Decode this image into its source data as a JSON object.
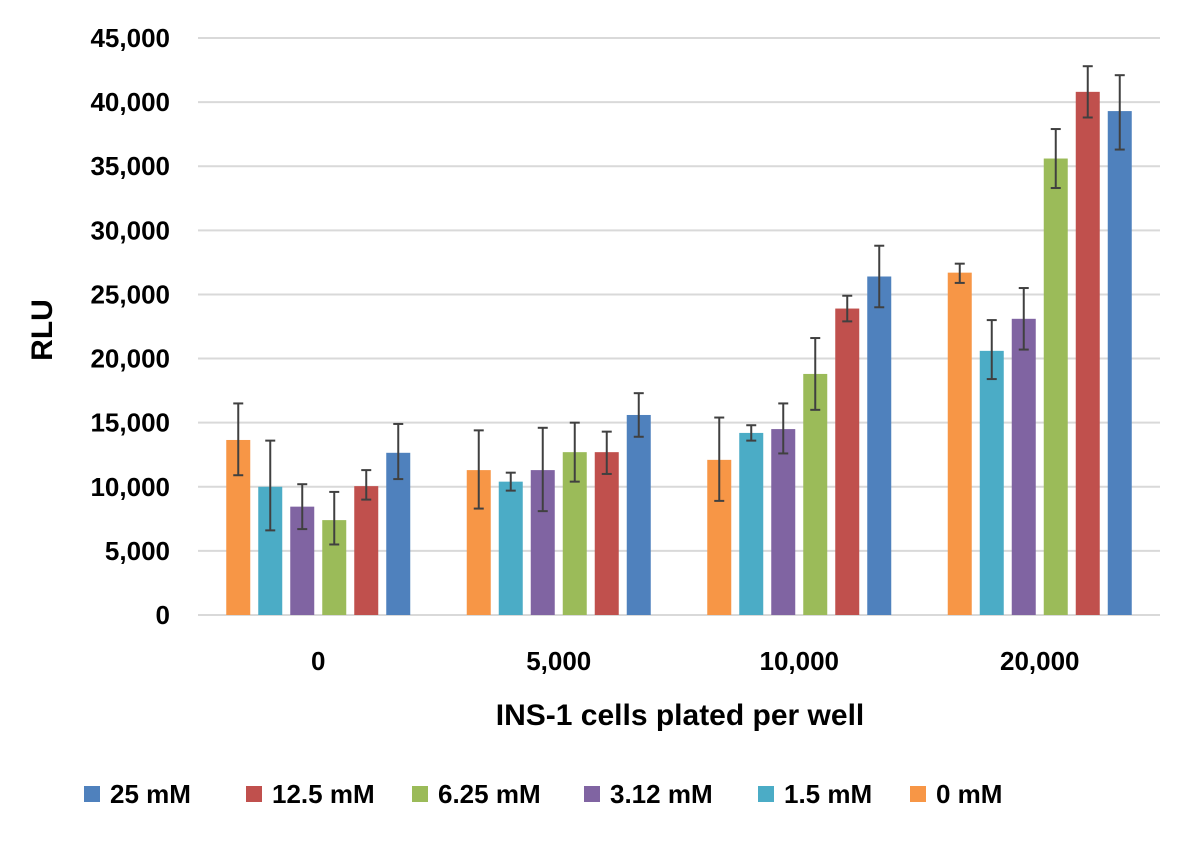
{
  "chart_data": {
    "type": "bar",
    "title": "",
    "xlabel": "INS-1 cells plated per well",
    "ylabel": "RLU",
    "ylim": [
      0,
      45000
    ],
    "yticks": [
      "0",
      "5,000",
      "10,000",
      "15,000",
      "20,000",
      "25,000",
      "30,000",
      "35,000",
      "40,000",
      "45,000"
    ],
    "ytick_values": [
      0,
      5000,
      10000,
      15000,
      20000,
      25000,
      30000,
      35000,
      40000,
      45000
    ],
    "grid": true,
    "legend_position": "bottom",
    "categories": [
      "0",
      "5,000",
      "10,000",
      "20,000"
    ],
    "series": [
      {
        "name": "0 mM",
        "color": "#F79646",
        "values": [
          13650,
          11300,
          12100,
          26700
        ],
        "err_low": [
          10900,
          8300,
          8900,
          25900
        ],
        "err_high": [
          16500,
          14400,
          15400,
          27400
        ]
      },
      {
        "name": "1.5 mM",
        "color": "#4BACC6",
        "values": [
          10000,
          10400,
          14200,
          20600
        ],
        "err_low": [
          6600,
          9700,
          13600,
          18400
        ],
        "err_high": [
          13600,
          11100,
          14800,
          23000
        ]
      },
      {
        "name": "3.12 mM",
        "color": "#8064A2",
        "values": [
          8450,
          11300,
          14500,
          23100
        ],
        "err_low": [
          6700,
          8100,
          12600,
          20700
        ],
        "err_high": [
          10200,
          14600,
          16500,
          25500
        ]
      },
      {
        "name": "6.25 mM",
        "color": "#9BBB59",
        "values": [
          7400,
          12700,
          18800,
          35600
        ],
        "err_low": [
          5500,
          10400,
          16000,
          33300
        ],
        "err_high": [
          9600,
          15000,
          21600,
          37900
        ]
      },
      {
        "name": "12.5 mM",
        "color": "#C0504D",
        "values": [
          10050,
          12700,
          23900,
          40800
        ],
        "err_low": [
          9000,
          11000,
          22900,
          38800
        ],
        "err_high": [
          11300,
          14300,
          24900,
          42800
        ]
      },
      {
        "name": "25 mM",
        "color": "#4F81BD",
        "values": [
          12650,
          15600,
          26400,
          39300
        ],
        "err_low": [
          10600,
          13900,
          24000,
          36300
        ],
        "err_high": [
          14900,
          17300,
          28800,
          42100
        ]
      }
    ],
    "legend_order": [
      "25 mM",
      "12.5 mM",
      "6.25 mM",
      "3.12 mM",
      "1.5 mM",
      "0 mM"
    ]
  }
}
